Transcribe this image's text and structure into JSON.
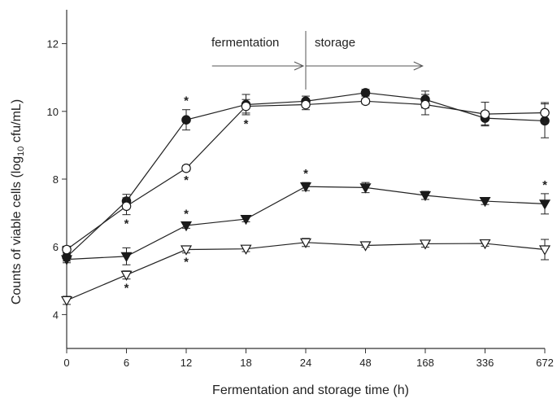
{
  "chart_data": {
    "type": "line",
    "xlabel": "Fermentation and storage time (h)",
    "ylabel_main": "Counts of viable cells (log",
    "ylabel_sub": "10",
    "ylabel_end": " cfu/mL)",
    "categories": [
      "0",
      "6",
      "12",
      "18",
      "24",
      "48",
      "168",
      "336",
      "672"
    ],
    "ylim": [
      3,
      13
    ],
    "yticks": [
      "4",
      "6",
      "8",
      "10",
      "12"
    ],
    "grid": false,
    "annotations": {
      "fermentation": "fermentation",
      "storage": "storage",
      "significance_marker": "*"
    },
    "series": [
      {
        "marker": "filled-circle",
        "values": [
          5.7,
          7.35,
          9.75,
          10.2,
          10.3,
          10.55,
          10.35,
          9.8,
          9.72
        ],
        "errors": [
          0.12,
          0.2,
          0.3,
          0.3,
          0.15,
          0.1,
          0.25,
          0.2,
          0.5
        ]
      },
      {
        "marker": "open-circle",
        "values": [
          5.92,
          7.2,
          8.32,
          10.15,
          10.2,
          10.3,
          10.2,
          9.92,
          9.96
        ],
        "errors": [
          0.1,
          0.25,
          0.08,
          0.2,
          0.15,
          0.08,
          0.3,
          0.35,
          0.3
        ]
      },
      {
        "marker": "filled-triangle-down",
        "values": [
          5.63,
          5.72,
          6.63,
          6.82,
          7.78,
          7.75,
          7.52,
          7.35,
          7.27
        ],
        "errors": [
          0.1,
          0.25,
          0.08,
          0.08,
          0.12,
          0.15,
          0.12,
          0.1,
          0.3
        ]
      },
      {
        "marker": "open-triangle-down",
        "values": [
          4.42,
          5.17,
          5.92,
          5.94,
          6.13,
          6.04,
          6.09,
          6.1,
          5.92
        ],
        "errors": [
          0.12,
          0.12,
          0.1,
          0.08,
          0.12,
          0.05,
          0.1,
          0.08,
          0.3
        ]
      }
    ],
    "significance": [
      {
        "series": 0,
        "index": 2,
        "pos": "above"
      },
      {
        "series": 0,
        "index": 3,
        "pos": "below"
      },
      {
        "series": 1,
        "index": 1,
        "pos": "below"
      },
      {
        "series": 1,
        "index": 2,
        "pos": "below"
      },
      {
        "series": 2,
        "index": 2,
        "pos": "above"
      },
      {
        "series": 2,
        "index": 4,
        "pos": "above"
      },
      {
        "series": 2,
        "index": 8,
        "pos": "above"
      },
      {
        "series": 3,
        "index": 1,
        "pos": "below"
      },
      {
        "series": 3,
        "index": 2,
        "pos": "below"
      }
    ]
  }
}
